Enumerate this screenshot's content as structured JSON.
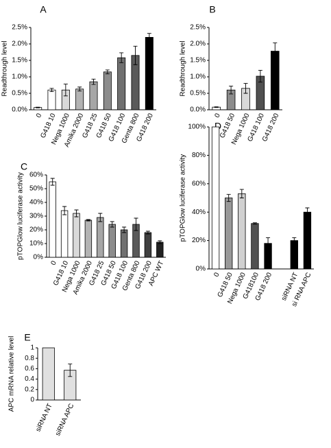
{
  "chart_data": [
    {
      "type": "bar",
      "label": "A",
      "y_label": "Readthrough level",
      "categories": [
        "0",
        "G418 10",
        "Nega 1000",
        "Amika 2000",
        "G418 25",
        "G418 50",
        "G418 100",
        "Genta 800",
        "G418 200"
      ],
      "values": [
        0.07,
        0.6,
        0.6,
        0.63,
        0.85,
        1.15,
        1.58,
        1.65,
        2.2
      ],
      "errors": [
        0.01,
        0.05,
        0.18,
        0.06,
        0.08,
        0.06,
        0.15,
        0.28,
        0.12
      ],
      "colors": [
        "#ffffff",
        "#ffffff",
        "#d9d9d9",
        "#b3b3b3",
        "#a6a6a6",
        "#8c8c8c",
        "#707070",
        "#5a5a5a",
        "#000000"
      ],
      "ylim": [
        0,
        2.5
      ],
      "yticks": [
        {
          "value": 0,
          "label": "0.0%"
        },
        {
          "value": 0.5,
          "label": "0.5%"
        },
        {
          "value": 1,
          "label": "1.0%"
        },
        {
          "value": 1.5,
          "label": "1.5%"
        },
        {
          "value": 2,
          "label": "2.0%"
        },
        {
          "value": 2.5,
          "label": "2.5%"
        }
      ]
    },
    {
      "type": "bar",
      "label": "B",
      "y_label": "Readthrough level",
      "categories": [
        "0",
        "G418 50",
        "Nega 1000",
        "G418 100",
        "G418 200"
      ],
      "values": [
        0.08,
        0.6,
        0.65,
        1.02,
        1.78
      ],
      "errors": [
        0.01,
        0.12,
        0.15,
        0.18,
        0.25
      ],
      "colors": [
        "#ffffff",
        "#8c8c8c",
        "#d9d9d9",
        "#505050",
        "#000000"
      ],
      "ylim": [
        0,
        2.5
      ],
      "yticks": [
        {
          "value": 0,
          "label": "0.0%"
        },
        {
          "value": 0.5,
          "label": "0.5%"
        },
        {
          "value": 1,
          "label": "1.0%"
        },
        {
          "value": 1.5,
          "label": "1.5%"
        },
        {
          "value": 2,
          "label": "2.0%"
        },
        {
          "value": 2.5,
          "label": "2.5%"
        }
      ]
    },
    {
      "type": "bar",
      "label": "C",
      "y_label": "pTOPGlow luciferase activity",
      "categories": [
        "0",
        "G418 10",
        "Nega 1000",
        "Amika 2000",
        "G418 25",
        "G418 50",
        "G418 100",
        "Genta 800",
        "G418 200",
        "APC WT"
      ],
      "values": [
        55,
        34,
        32,
        27,
        29,
        24,
        20,
        24,
        18,
        11
      ],
      "errors": [
        2.5,
        3,
        2.5,
        0.5,
        3,
        2,
        2,
        4.5,
        1,
        1
      ],
      "colors": [
        "#ffffff",
        "#ffffff",
        "#d9d9d9",
        "#b3b3b3",
        "#a6a6a6",
        "#8c8c8c",
        "#707070",
        "#5a5a5a",
        "#404040",
        "#222222"
      ],
      "ylim": [
        0,
        60
      ],
      "yticks": [
        {
          "value": 0,
          "label": "0%"
        },
        {
          "value": 10,
          "label": "10%"
        },
        {
          "value": 20,
          "label": "20%"
        },
        {
          "value": 30,
          "label": "30%"
        },
        {
          "value": 40,
          "label": "40%"
        },
        {
          "value": 50,
          "label": "50%"
        },
        {
          "value": 60,
          "label": "60%"
        }
      ]
    },
    {
      "type": "bar",
      "label": "D",
      "y_label": "pTOPGlow luciferase activity",
      "categories": [
        "0",
        "G418 50",
        "Nega 1000",
        "G418100",
        "G418 200",
        null,
        "siRNA NT",
        "si RNA  APC"
      ],
      "values": [
        100,
        50,
        53,
        32,
        18,
        null,
        20,
        40
      ],
      "errors": [
        0,
        2.5,
        3,
        0.5,
        4,
        null,
        2,
        3
      ],
      "colors": [
        "#ffffff",
        "#999999",
        "#d0d0d0",
        "#505050",
        "#000000",
        null,
        "#000000",
        "#000000"
      ],
      "ylim": [
        0,
        100
      ],
      "yticks": [
        {
          "value": 0,
          "label": "0%"
        },
        {
          "value": 20,
          "label": "20%"
        },
        {
          "value": 40,
          "label": "40%"
        },
        {
          "value": 60,
          "label": "60%"
        },
        {
          "value": 80,
          "label": "80%"
        },
        {
          "value": 100,
          "label": "100%"
        }
      ]
    },
    {
      "type": "bar",
      "label": "E",
      "y_label": "APC mRNA relative level",
      "categories": [
        "siRNA NT",
        "siRNA APC"
      ],
      "values": [
        1,
        0.57
      ],
      "errors": [
        0,
        0.12
      ],
      "colors": [
        "#e0e0e0",
        "#e0e0e0"
      ],
      "ylim": [
        0,
        1
      ],
      "yticks": [
        0,
        0.2,
        0.4,
        0.6,
        0.8,
        1
      ]
    }
  ]
}
